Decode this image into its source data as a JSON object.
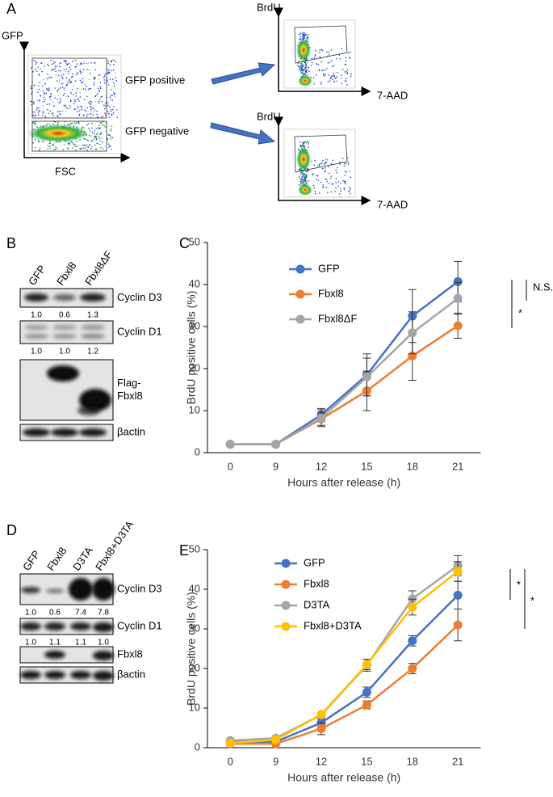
{
  "panel_a": {
    "label": "A",
    "y_label": "GFP",
    "x_label": "FSC",
    "gates": [
      "GFP positive",
      "GFP negative"
    ],
    "plots": [
      {
        "y_label": "BrdU",
        "x_label": "7-AAD"
      },
      {
        "y_label": "BrdU",
        "x_label": "7-AAD"
      }
    ]
  },
  "panel_b": {
    "label": "B",
    "lanes": [
      "GFP",
      "Fbxl8",
      "Fbxl8ΔF"
    ],
    "blots": [
      {
        "name_lines": [
          "Cyclin D3"
        ],
        "quant": [
          "1.0",
          "0.6",
          "1.3"
        ]
      },
      {
        "name_lines": [
          "Cyclin D1"
        ],
        "quant": [
          "1.0",
          "1.0",
          "1.2"
        ]
      },
      {
        "name_lines": [
          "Flag-",
          "Fbxl8"
        ]
      },
      {
        "name_lines": [
          "βactin"
        ]
      }
    ]
  },
  "panel_d": {
    "label": "D",
    "lanes": [
      "GFP",
      "Fbxl8",
      "D3TA",
      "Fbxl8+D3TA"
    ],
    "blots": [
      {
        "name_lines": [
          "Cyclin D3"
        ],
        "quant": [
          "1.0",
          "0.6",
          "7.4",
          "7.8"
        ]
      },
      {
        "name_lines": [
          "Cyclin D1"
        ],
        "quant": [
          "1.0",
          "1.1",
          "1.1",
          "1.0"
        ]
      },
      {
        "name_lines": [
          "Fbxl8"
        ]
      },
      {
        "name_lines": [
          "βactin"
        ]
      }
    ]
  },
  "chart_data": [
    {
      "type": "line",
      "panel_label": "C",
      "x_label": "Hours after release (h)",
      "y_label": "BrdU positive cells (%)",
      "categories": [
        0,
        9,
        12,
        15,
        18,
        21
      ],
      "ylim": [
        0,
        50
      ],
      "yticks": [
        0,
        10,
        20,
        30,
        40,
        50
      ],
      "legend": "upper left",
      "series": [
        {
          "name": "GFP",
          "color": "#4472c4",
          "values": [
            2,
            2,
            9,
            18.5,
            32.5,
            40.7
          ],
          "errors": [
            0,
            0,
            1.5,
            5,
            6.3,
            4.8
          ]
        },
        {
          "name": "Fbxl8",
          "color": "#ed7d31",
          "values": [
            2,
            2,
            8,
            14.7,
            23,
            30.2
          ],
          "errors": [
            0,
            0,
            1.5,
            4.7,
            5.8,
            3
          ]
        },
        {
          "name": "Fbxl8ΔF",
          "color": "#a5a5a5",
          "values": [
            2,
            2,
            8.2,
            18,
            28.5,
            36.7
          ],
          "errors": [
            0,
            0,
            2,
            4.5,
            5,
            3.8
          ]
        }
      ],
      "annotations": [
        {
          "text": "N.S."
        },
        {
          "text": "*"
        }
      ]
    },
    {
      "type": "line",
      "panel_label": "E",
      "x_label": "Hours after release (h)",
      "y_label": "BrdU positive cells (%)",
      "categories": [
        0,
        9,
        12,
        15,
        18,
        21
      ],
      "ylim": [
        0,
        50
      ],
      "yticks": [
        0,
        10,
        20,
        30,
        40,
        50
      ],
      "legend": "upper left",
      "series": [
        {
          "name": "GFP",
          "color": "#4472c4",
          "values": [
            1.5,
            1.5,
            6.3,
            14,
            27,
            38.5
          ],
          "errors": [
            0.3,
            0.3,
            1,
            1.3,
            1.3,
            3.5
          ]
        },
        {
          "name": "Fbxl8",
          "color": "#ed7d31",
          "values": [
            1,
            1,
            4.8,
            10.8,
            20,
            31
          ],
          "errors": [
            0.2,
            0.3,
            1.5,
            1,
            1.3,
            4
          ]
        },
        {
          "name": "D3TA",
          "color": "#a5a5a5",
          "values": [
            1.8,
            2.4,
            8.3,
            20.8,
            37.6,
            46
          ],
          "errors": [
            0.3,
            0.3,
            0.5,
            1.5,
            2,
            2.5
          ]
        },
        {
          "name": "Fbxl8+D3TA",
          "color": "#ffc000",
          "values": [
            1.2,
            2,
            8.4,
            21,
            35.5,
            44.5
          ],
          "errors": [
            0.3,
            0.3,
            0.5,
            1.3,
            2,
            2.5
          ]
        }
      ],
      "annotations": [
        {
          "text": "*"
        },
        {
          "text": "*"
        }
      ]
    }
  ]
}
